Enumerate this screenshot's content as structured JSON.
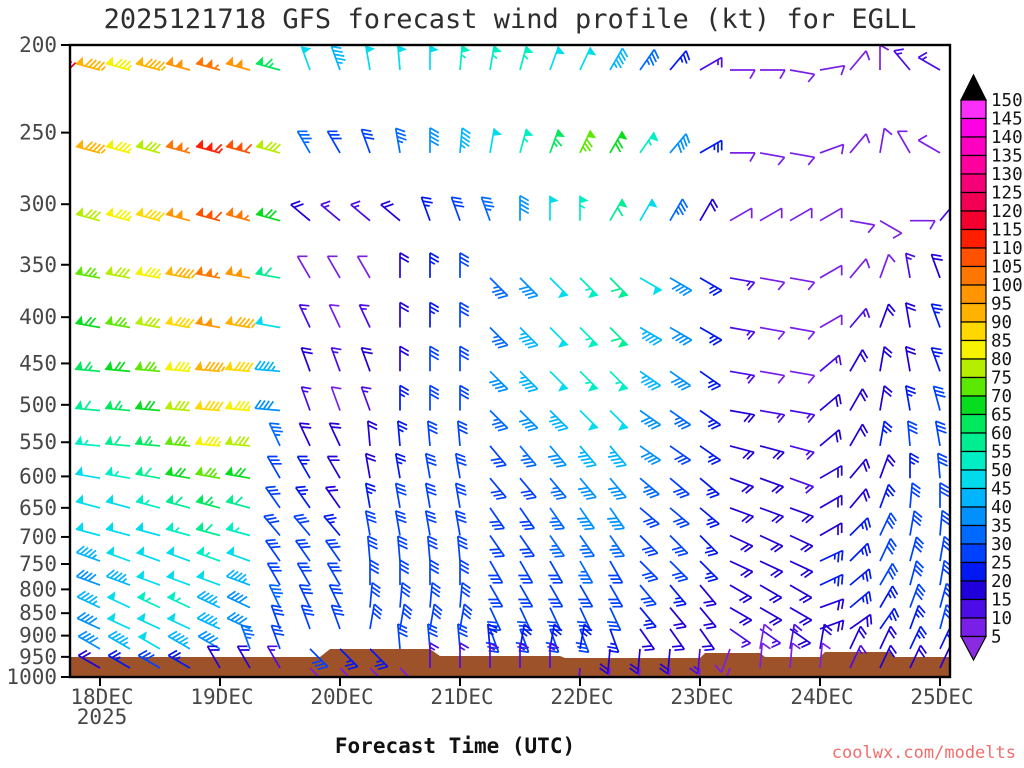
{
  "title": "2025121718 GFS forecast wind profile (kt) for EGLL",
  "axes": {
    "xlabel": "Forecast Time (UTC)",
    "year": "2025",
    "time_ticks": [
      "18DEC",
      "19DEC",
      "20DEC",
      "21DEC",
      "22DEC",
      "23DEC",
      "24DEC",
      "25DEC"
    ],
    "pressure_ticks": [
      200,
      250,
      300,
      350,
      400,
      450,
      500,
      550,
      600,
      650,
      700,
      750,
      800,
      850,
      900,
      950,
      1000
    ]
  },
  "watermark": {
    "text": "coolwx.com/modelts",
    "color": "#f26d6d"
  },
  "colorbar": {
    "values": [
      5,
      10,
      15,
      20,
      25,
      30,
      35,
      40,
      45,
      50,
      55,
      60,
      65,
      70,
      75,
      80,
      85,
      90,
      95,
      100,
      105,
      110,
      115,
      120,
      125,
      130,
      135,
      140,
      145,
      150
    ],
    "palette": [
      "#8a2be2",
      "#7a1fe8",
      "#4b0ce8",
      "#1f00db",
      "#0018f2",
      "#0041ff",
      "#0069ff",
      "#0091ff",
      "#00b5ff",
      "#00dcee",
      "#00eec3",
      "#00ee91",
      "#00e95e",
      "#06dd1f",
      "#5ce800",
      "#b6ee00",
      "#f6f200",
      "#ffd800",
      "#ffb300",
      "#ff9500",
      "#ff7700",
      "#ff5200",
      "#ff1e00",
      "#f3002e",
      "#f10054",
      "#f60078",
      "#ff009e",
      "#ff00c3",
      "#ff00e5",
      "#fa30fa"
    ],
    "over_color": "#000000",
    "under_color": "#8a2be2"
  },
  "terrain": {
    "color": "#9d5229",
    "surface": [
      [
        70,
        657
      ],
      [
        320,
        657
      ],
      [
        330,
        649
      ],
      [
        430,
        649
      ],
      [
        440,
        656
      ],
      [
        560,
        656
      ],
      [
        565,
        658
      ],
      [
        700,
        658
      ],
      [
        705,
        653
      ],
      [
        760,
        653
      ],
      [
        765,
        657
      ],
      [
        820,
        657
      ],
      [
        825,
        652
      ],
      [
        890,
        652
      ],
      [
        895,
        657
      ],
      [
        950,
        657
      ],
      [
        950,
        676
      ],
      [
        70,
        676
      ]
    ]
  },
  "chart_data": {
    "type": "wind-barb-time-height",
    "units": "kt",
    "run": "2025121718",
    "station": "EGLL",
    "forecast_hours": [
      0,
      6,
      12,
      18,
      24,
      30,
      36,
      42,
      48,
      54,
      60,
      66,
      72,
      78,
      84,
      90,
      96,
      102,
      108,
      114,
      120,
      126,
      132,
      138,
      144,
      150,
      156,
      162,
      168,
      174
    ],
    "levels": [
      {
        "p": 200,
        "spd": [
          120,
          95,
          85,
          95,
          100,
          105,
          100,
          65,
          50,
          45,
          50,
          50,
          50,
          55,
          55,
          55,
          50,
          50,
          45,
          35,
          25,
          15,
          10,
          10,
          12,
          12,
          12,
          12,
          15,
          15
        ],
        "dir": [
          285,
          285,
          285,
          285,
          285,
          285,
          285,
          285,
          340,
          340,
          350,
          355,
          0,
          5,
          10,
          15,
          20,
          25,
          30,
          35,
          40,
          60,
          90,
          90,
          100,
          80,
          40,
          0,
          320,
          300
        ]
      },
      {
        "p": 250,
        "spd": [
          65,
          95,
          85,
          80,
          105,
          115,
          110,
          80,
          35,
          30,
          30,
          35,
          40,
          45,
          50,
          55,
          65,
          75,
          70,
          55,
          40,
          25,
          12,
          10,
          10,
          8,
          8,
          10,
          10,
          12
        ],
        "dir": [
          285,
          285,
          285,
          285,
          285,
          285,
          285,
          285,
          330,
          330,
          340,
          350,
          0,
          5,
          10,
          15,
          20,
          25,
          30,
          35,
          40,
          60,
          90,
          100,
          100,
          70,
          40,
          10,
          330,
          300
        ]
      },
      {
        "p": 300,
        "spd": [
          75,
          80,
          85,
          90,
          100,
          110,
          105,
          70,
          20,
          15,
          15,
          20,
          25,
          30,
          35,
          40,
          50,
          55,
          60,
          50,
          35,
          22,
          12,
          10,
          8,
          8,
          8,
          10,
          12,
          15
        ],
        "dir": [
          285,
          285,
          285,
          285,
          285,
          285,
          285,
          285,
          310,
          310,
          310,
          310,
          340,
          340,
          340,
          0,
          0,
          0,
          30,
          30,
          30,
          30,
          60,
          60,
          60,
          60,
          100,
          120,
          90,
          40
        ]
      },
      {
        "p": 350,
        "spd": [
          65,
          75,
          80,
          85,
          95,
          105,
          100,
          60,
          12,
          10,
          12,
          18,
          25,
          30,
          35,
          40,
          50,
          55,
          60,
          50,
          40,
          25,
          15,
          12,
          10,
          8,
          10,
          12,
          15,
          18
        ],
        "dir": [
          280,
          280,
          280,
          280,
          280,
          280,
          280,
          280,
          330,
          330,
          330,
          0,
          0,
          0,
          135,
          135,
          135,
          135,
          135,
          120,
          120,
          120,
          100,
          100,
          100,
          60,
          40,
          20,
          350,
          340
        ]
      },
      {
        "p": 400,
        "spd": [
          55,
          70,
          75,
          80,
          90,
          100,
          95,
          50,
          15,
          12,
          15,
          20,
          25,
          30,
          35,
          45,
          50,
          55,
          60,
          45,
          40,
          25,
          15,
          12,
          10,
          12,
          15,
          18,
          20,
          25
        ],
        "dir": [
          280,
          280,
          280,
          280,
          280,
          280,
          280,
          280,
          335,
          335,
          335,
          0,
          0,
          0,
          135,
          135,
          135,
          135,
          135,
          120,
          120,
          120,
          100,
          100,
          100,
          60,
          40,
          20,
          350,
          340
        ]
      },
      {
        "p": 450,
        "spd": [
          50,
          65,
          70,
          75,
          85,
          95,
          90,
          45,
          20,
          15,
          18,
          22,
          28,
          32,
          38,
          45,
          50,
          55,
          55,
          45,
          40,
          25,
          15,
          12,
          12,
          15,
          18,
          20,
          22,
          25
        ],
        "dir": [
          275,
          275,
          275,
          275,
          275,
          275,
          275,
          275,
          340,
          340,
          340,
          0,
          0,
          0,
          135,
          135,
          135,
          135,
          135,
          125,
          125,
          125,
          100,
          100,
          100,
          50,
          30,
          10,
          350,
          340
        ]
      },
      {
        "p": 500,
        "spd": [
          45,
          60,
          65,
          70,
          80,
          90,
          85,
          40,
          15,
          12,
          15,
          25,
          30,
          32,
          35,
          40,
          45,
          50,
          50,
          40,
          35,
          25,
          18,
          15,
          15,
          18,
          20,
          22,
          25,
          28
        ],
        "dir": [
          275,
          275,
          275,
          275,
          275,
          275,
          275,
          275,
          340,
          340,
          340,
          0,
          0,
          0,
          135,
          135,
          135,
          135,
          135,
          125,
          125,
          125,
          100,
          100,
          100,
          50,
          30,
          10,
          350,
          345
        ]
      },
      {
        "p": 550,
        "spd": [
          45,
          55,
          60,
          65,
          75,
          85,
          80,
          35,
          22,
          18,
          20,
          25,
          28,
          30,
          32,
          35,
          40,
          45,
          45,
          38,
          30,
          25,
          20,
          18,
          15,
          18,
          20,
          25,
          28,
          30
        ],
        "dir": [
          275,
          275,
          275,
          275,
          275,
          275,
          275,
          335,
          335,
          335,
          355,
          355,
          355,
          355,
          140,
          140,
          140,
          140,
          140,
          125,
          125,
          125,
          105,
          105,
          105,
          50,
          30,
          10,
          355,
          350
        ]
      },
      {
        "p": 600,
        "spd": [
          40,
          50,
          55,
          60,
          70,
          75,
          70,
          30,
          25,
          20,
          22,
          25,
          28,
          30,
          30,
          32,
          35,
          40,
          40,
          35,
          28,
          25,
          20,
          18,
          15,
          18,
          20,
          22,
          25,
          30
        ],
        "dir": [
          280,
          280,
          280,
          280,
          280,
          280,
          280,
          330,
          330,
          330,
          350,
          350,
          350,
          350,
          140,
          140,
          140,
          140,
          140,
          130,
          130,
          130,
          110,
          110,
          110,
          60,
          40,
          20,
          0,
          355
        ]
      },
      {
        "p": 650,
        "spd": [
          40,
          50,
          52,
          55,
          60,
          65,
          60,
          30,
          25,
          22,
          25,
          28,
          30,
          30,
          30,
          32,
          35,
          38,
          38,
          32,
          28,
          25,
          20,
          18,
          18,
          20,
          22,
          25,
          28,
          30
        ],
        "dir": [
          285,
          285,
          285,
          285,
          285,
          285,
          285,
          325,
          325,
          325,
          350,
          350,
          350,
          350,
          145,
          145,
          145,
          145,
          145,
          130,
          130,
          130,
          110,
          110,
          110,
          60,
          40,
          20,
          5,
          0
        ]
      },
      {
        "p": 700,
        "spd": [
          38,
          48,
          50,
          52,
          55,
          58,
          55,
          30,
          28,
          25,
          28,
          30,
          30,
          32,
          32,
          32,
          35,
          35,
          35,
          30,
          28,
          25,
          22,
          20,
          20,
          22,
          25,
          28,
          30,
          32
        ],
        "dir": [
          285,
          285,
          285,
          285,
          285,
          285,
          285,
          320,
          320,
          320,
          350,
          350,
          350,
          350,
          145,
          145,
          145,
          145,
          145,
          135,
          135,
          135,
          115,
          115,
          115,
          60,
          45,
          25,
          10,
          5
        ]
      },
      {
        "p": 750,
        "spd": [
          35,
          45,
          48,
          50,
          52,
          55,
          50,
          32,
          30,
          28,
          30,
          30,
          32,
          32,
          32,
          32,
          32,
          35,
          32,
          30,
          28,
          25,
          22,
          20,
          22,
          25,
          25,
          28,
          30,
          32
        ],
        "dir": [
          290,
          290,
          290,
          290,
          290,
          290,
          290,
          325,
          325,
          325,
          355,
          355,
          355,
          355,
          150,
          150,
          150,
          150,
          150,
          135,
          135,
          135,
          115,
          115,
          115,
          65,
          45,
          25,
          15,
          10
        ]
      },
      {
        "p": 800,
        "spd": [
          35,
          42,
          45,
          48,
          50,
          50,
          45,
          32,
          30,
          30,
          30,
          32,
          32,
          32,
          32,
          32,
          32,
          32,
          30,
          28,
          25,
          22,
          20,
          20,
          22,
          25,
          25,
          28,
          30,
          30
        ],
        "dir": [
          290,
          290,
          290,
          290,
          290,
          290,
          290,
          330,
          330,
          330,
          0,
          0,
          0,
          0,
          150,
          150,
          150,
          150,
          150,
          140,
          140,
          140,
          120,
          120,
          120,
          65,
          50,
          30,
          15,
          10
        ]
      },
      {
        "p": 850,
        "spd": [
          40,
          45,
          50,
          55,
          55,
          45,
          40,
          35,
          30,
          30,
          32,
          32,
          32,
          32,
          30,
          30,
          30,
          30,
          28,
          25,
          22,
          20,
          18,
          18,
          20,
          22,
          25,
          25,
          28,
          30
        ],
        "dir": [
          295,
          295,
          295,
          295,
          295,
          295,
          295,
          335,
          335,
          335,
          5,
          5,
          5,
          5,
          155,
          155,
          155,
          155,
          155,
          140,
          140,
          140,
          120,
          120,
          120,
          70,
          50,
          30,
          20,
          15
        ]
      },
      {
        "p": 900,
        "spd": [
          38,
          42,
          48,
          52,
          50,
          45,
          38,
          32,
          30,
          28,
          30,
          30,
          30,
          30,
          28,
          28,
          28,
          28,
          25,
          22,
          20,
          18,
          15,
          15,
          18,
          20,
          22,
          25,
          25,
          28
        ],
        "dir": [
          295,
          295,
          295,
          295,
          295,
          295,
          295,
          340,
          340,
          340,
          10,
          10,
          10,
          10,
          160,
          160,
          160,
          160,
          160,
          145,
          145,
          145,
          125,
          125,
          125,
          70,
          55,
          35,
          20,
          15
        ]
      },
      {
        "p": 950,
        "spd": [
          35,
          40,
          45,
          48,
          45,
          40,
          35,
          30,
          28,
          25,
          25,
          28,
          28,
          28,
          25,
          25,
          25,
          25,
          22,
          20,
          18,
          15,
          12,
          12,
          15,
          18,
          20,
          22,
          25,
          25
        ],
        "dir": [
          300,
          300,
          300,
          300,
          300,
          300,
          340,
          340,
          135,
          135,
          135,
          355,
          355,
          355,
          355,
          10,
          10,
          10,
          185,
          185,
          185,
          185,
          200,
          10,
          10,
          10,
          25,
          25,
          25,
          25
        ]
      },
      {
        "p": 1000,
        "spd": [
          15,
          20,
          25,
          28,
          25,
          22,
          18,
          15,
          12,
          10,
          10,
          12,
          15,
          15,
          15,
          15,
          15,
          15,
          12,
          10,
          10,
          10,
          10,
          10,
          12,
          12,
          15,
          18,
          20,
          20
        ],
        "dir": [
          300,
          300,
          300,
          300,
          300,
          330,
          330,
          330,
          135,
          135,
          135,
          135,
          0,
          0,
          0,
          0,
          0,
          185,
          185,
          185,
          185,
          185,
          200,
          5,
          5,
          5,
          25,
          25,
          25,
          25
        ]
      }
    ]
  }
}
